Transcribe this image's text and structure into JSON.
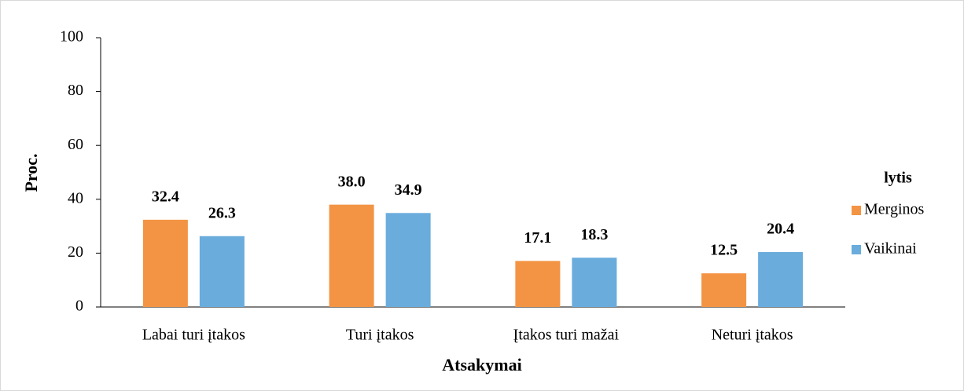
{
  "chart_data": {
    "type": "bar",
    "x_label": "Atsakymai",
    "y_label": "Proc.",
    "categories": [
      "Labai turi įtakos",
      "Turi įtakos",
      "Įtakos turi mažai",
      "Neturi įtakos"
    ],
    "series": [
      {
        "name": "Merginos",
        "color": "#f39444",
        "values": [
          32.4,
          38.0,
          17.1,
          12.5
        ],
        "value_labels": [
          "32.4",
          "38.0",
          "17.1",
          "12.5"
        ]
      },
      {
        "name": "Vaikinai",
        "color": "#6aacdc",
        "values": [
          26.3,
          34.9,
          18.3,
          20.4
        ],
        "value_labels": [
          "26.3",
          "34.9",
          "18.3",
          "20.4"
        ]
      }
    ],
    "legend_title": "lytis",
    "legend": "right",
    "ylim": [
      0,
      100
    ],
    "yticks": [
      0,
      20,
      40,
      60,
      80,
      100
    ],
    "grid": false
  }
}
